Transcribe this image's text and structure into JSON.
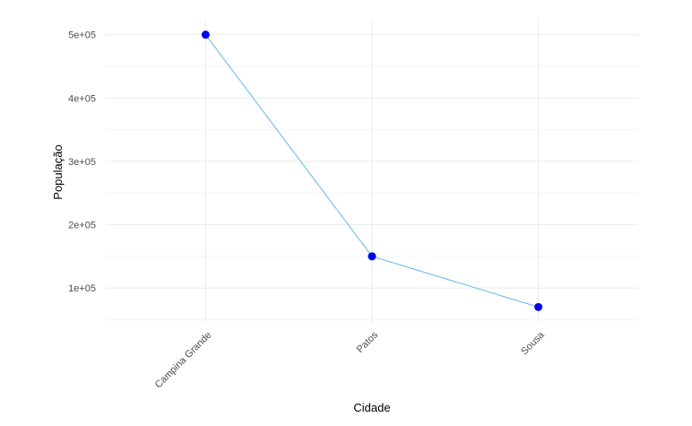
{
  "chart_data": {
    "type": "line",
    "title": "",
    "xlabel": "Cidade",
    "ylabel": "População",
    "categories": [
      "Campina Grande",
      "Patos",
      "Sousa"
    ],
    "series": [
      {
        "values": [
          500000,
          150000,
          70000
        ]
      }
    ],
    "ylim": [
      45000,
      525000
    ],
    "yticks": [
      100000,
      200000,
      300000,
      400000,
      500000
    ],
    "ytick_labels": [
      "1e+05",
      "2e+05",
      "3e+05",
      "4e+05",
      "5e+05"
    ],
    "grid": true,
    "legend": "none",
    "colors": {
      "line": "#5fb8ec",
      "point": "#0000ee",
      "grid_major": "#ebebeb",
      "grid_minor": "#f5f5f5"
    }
  }
}
